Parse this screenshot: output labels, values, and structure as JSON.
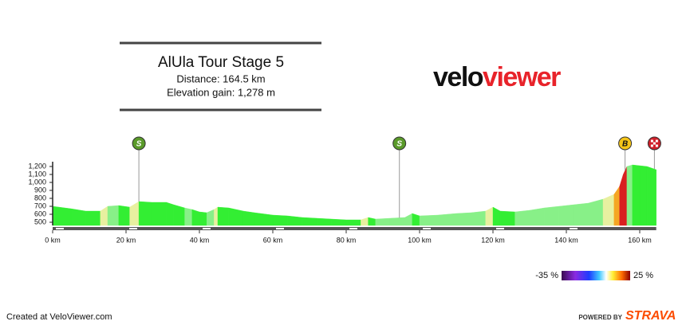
{
  "chart_data": {
    "type": "elevation-profile",
    "title": "AlUla Tour Stage 5",
    "distance_label": "Distance: 164.5 km",
    "elevation_gain_label": "Elevation gain: 1,278 m",
    "logo_parts": [
      "velo",
      "viewer"
    ],
    "x": [
      0,
      5,
      9,
      13,
      15,
      18,
      21,
      23.5,
      27,
      31,
      33,
      36,
      38,
      40,
      42,
      44,
      45,
      48,
      52,
      55,
      60,
      64,
      68,
      72,
      76,
      80,
      84,
      86,
      88,
      92,
      96,
      98,
      100,
      105,
      110,
      114,
      118,
      120,
      122,
      126,
      130,
      134,
      138,
      142,
      146,
      150,
      153,
      154.5,
      155.5,
      156.5,
      158,
      160,
      162,
      164.5
    ],
    "values": [
      700,
      670,
      640,
      640,
      700,
      710,
      690,
      760,
      750,
      750,
      720,
      680,
      660,
      630,
      620,
      660,
      690,
      680,
      640,
      620,
      590,
      580,
      560,
      550,
      540,
      530,
      530,
      560,
      540,
      550,
      560,
      610,
      580,
      590,
      610,
      620,
      640,
      690,
      640,
      630,
      650,
      680,
      700,
      720,
      740,
      790,
      850,
      950,
      1100,
      1200,
      1220,
      1210,
      1200,
      1160
    ],
    "segment_colors": [
      "#33ee33",
      "#33ee33",
      "#33ee33",
      "#e8f0a0",
      "#88f088",
      "#33ee33",
      "#e8f0a0",
      "#33ee33",
      "#33ee33",
      "#33ee33",
      "#33ee33",
      "#88f088",
      "#33ee33",
      "#33ee33",
      "#88f088",
      "#e8f0a0",
      "#33ee33",
      "#33ee33",
      "#33ee33",
      "#33ee33",
      "#33ee33",
      "#33ee33",
      "#33ee33",
      "#33ee33",
      "#33ee33",
      "#33ee33",
      "#e8f0a0",
      "#33ee33",
      "#88f088",
      "#88f088",
      "#88f088",
      "#33ee33",
      "#88f088",
      "#88f088",
      "#88f088",
      "#88f088",
      "#e8f0a0",
      "#33ee33",
      "#33ee33",
      "#88f088",
      "#88f088",
      "#88f088",
      "#88f088",
      "#88f088",
      "#88f088",
      "#e8f0a0",
      "#f5a623",
      "#d92020",
      "#d92020",
      "#88f088",
      "#33ee33",
      "#33ee33",
      "#33ee33"
    ],
    "xlim": [
      0,
      164.5
    ],
    "ylim": [
      460,
      1240
    ],
    "xticks": [
      {
        "value": 0,
        "label": "0 km"
      },
      {
        "value": 20,
        "label": "20 km"
      },
      {
        "value": 40,
        "label": "40 km"
      },
      {
        "value": 60,
        "label": "60 km"
      },
      {
        "value": 80,
        "label": "80 km"
      },
      {
        "value": 100,
        "label": "100 km"
      },
      {
        "value": 120,
        "label": "120 km"
      },
      {
        "value": 140,
        "label": "140 km"
      },
      {
        "value": 160,
        "label": "160 km"
      }
    ],
    "yticks": [
      {
        "value": 1200,
        "label": "1,200"
      },
      {
        "value": 1100,
        "label": "1,100"
      },
      {
        "value": 1000,
        "label": "1,000"
      },
      900,
      800,
      700,
      600,
      500
    ],
    "markers": [
      {
        "km": 23.5,
        "label": "S",
        "color": "#5a9a2a"
      },
      {
        "km": 94.5,
        "label": "S",
        "color": "#5a9a2a"
      },
      {
        "km": 156,
        "label": "B",
        "color": "#f5c518"
      },
      {
        "km": 164,
        "label": null,
        "color": "#d0202a"
      }
    ],
    "gradient_legend": {
      "min_label": "-35 %",
      "max_label": "25 %"
    },
    "credit": "Created at VeloViewer.com",
    "powered_by": "POWERED BY",
    "strava": "STRAVA"
  }
}
